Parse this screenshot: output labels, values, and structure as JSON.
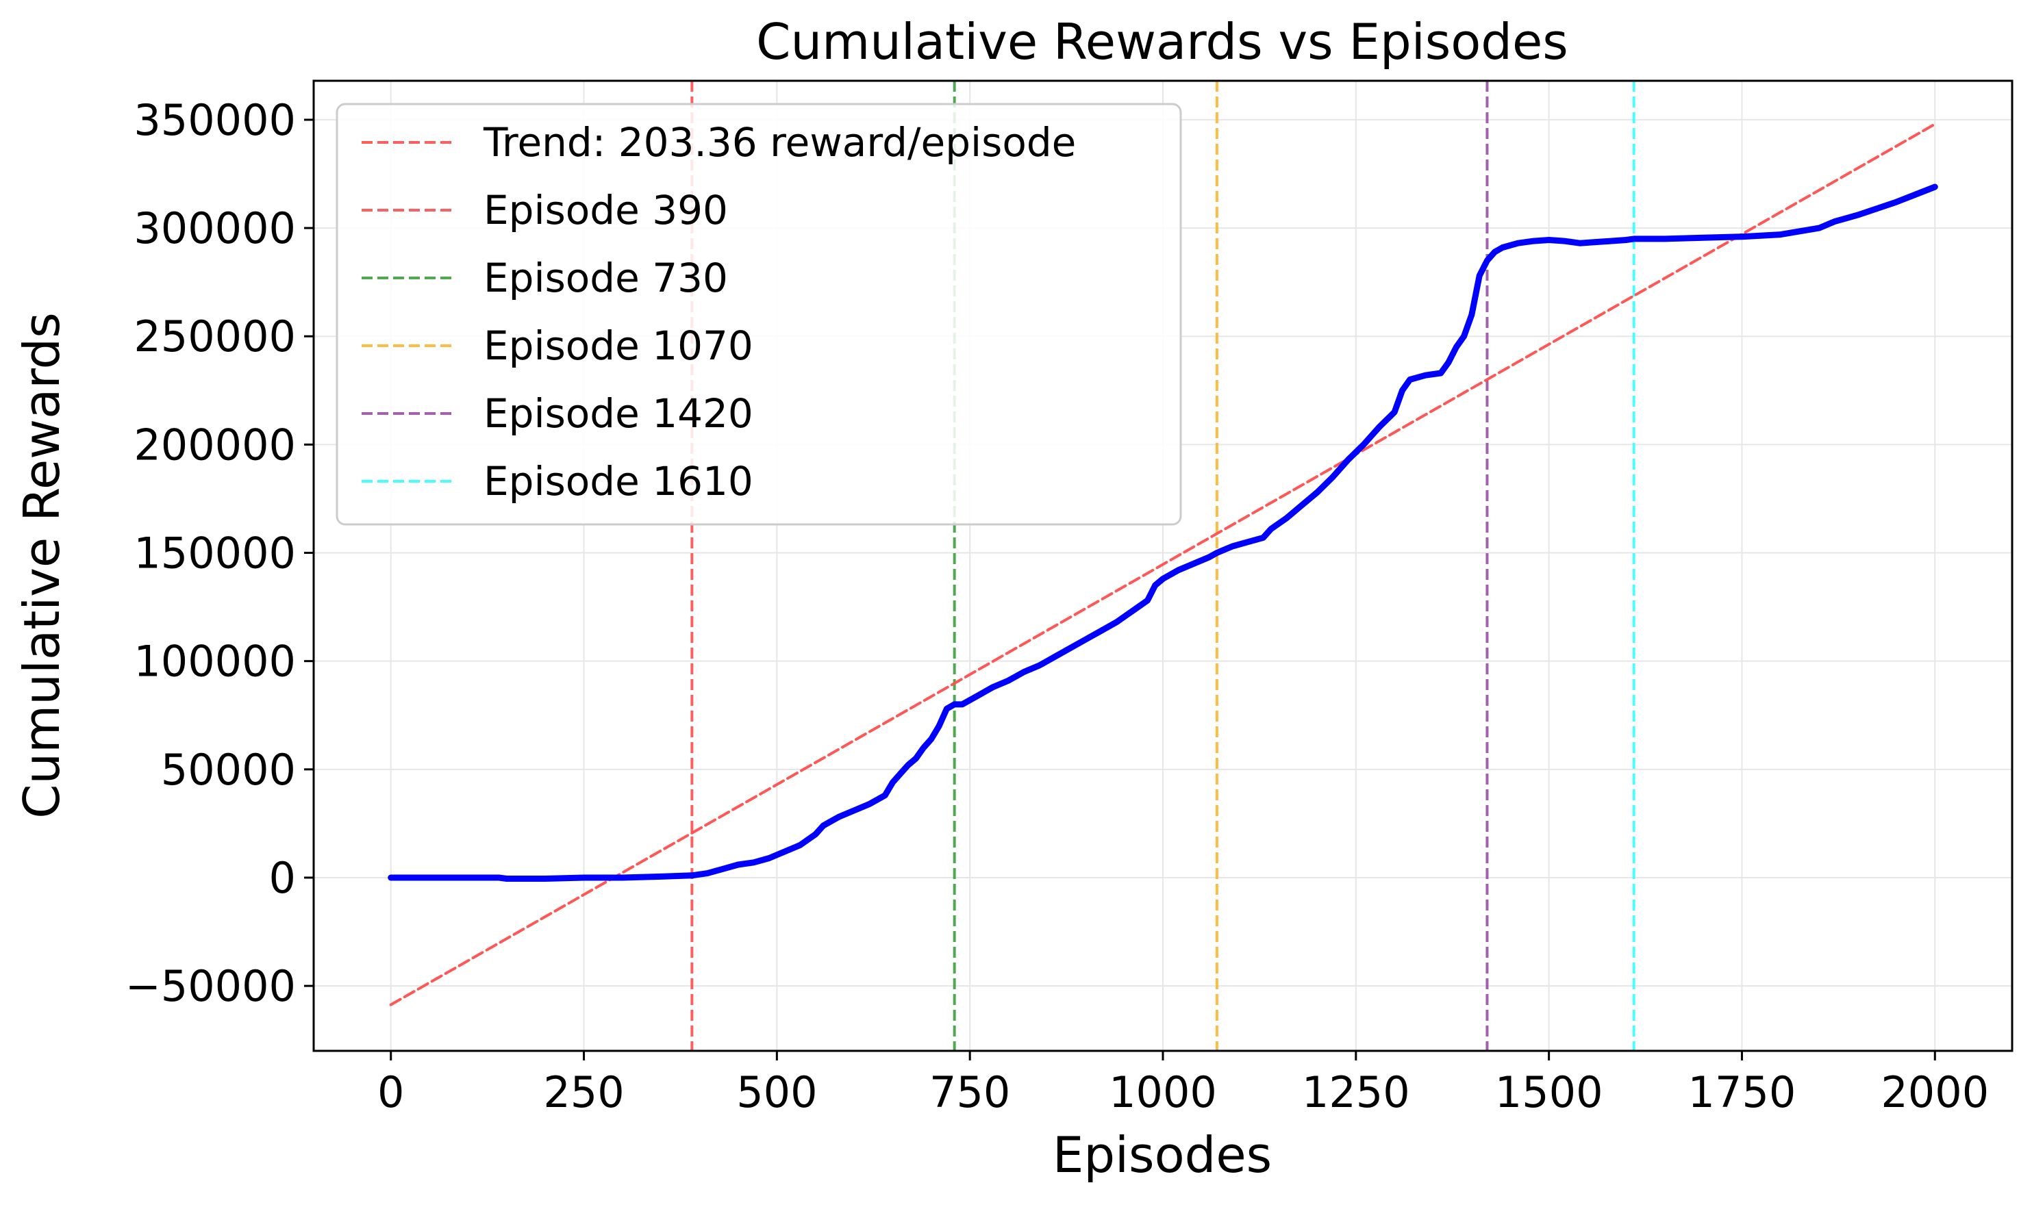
{
  "chart_data": {
    "type": "line",
    "title": "Cumulative Rewards vs Episodes",
    "xlabel": "Episodes",
    "ylabel": "Cumulative Rewards",
    "xlim": [
      -100,
      2100
    ],
    "ylim": [
      -80000,
      368000
    ],
    "x_ticks": [
      0,
      250,
      500,
      750,
      1000,
      1250,
      1500,
      1750,
      2000
    ],
    "x_tick_labels": [
      "0",
      "250",
      "500",
      "750",
      "1000",
      "1250",
      "1500",
      "1750",
      "2000"
    ],
    "y_ticks": [
      -50000,
      0,
      50000,
      100000,
      150000,
      200000,
      250000,
      300000,
      350000
    ],
    "y_tick_labels": [
      "−50000",
      "0",
      "50000",
      "100000",
      "150000",
      "200000",
      "250000",
      "300000",
      "350000"
    ],
    "grid": true,
    "legend_position": "top-left",
    "series": [
      {
        "color": "#0000ff",
        "style": "solid",
        "x": [
          0,
          50,
          100,
          140,
          150,
          200,
          250,
          300,
          350,
          390,
          410,
          430,
          450,
          470,
          490,
          510,
          530,
          550,
          560,
          570,
          580,
          600,
          620,
          640,
          650,
          660,
          670,
          680,
          690,
          700,
          710,
          720,
          730,
          740,
          760,
          780,
          800,
          820,
          840,
          850,
          860,
          880,
          900,
          920,
          940,
          960,
          980,
          990,
          1000,
          1020,
          1040,
          1060,
          1070,
          1090,
          1110,
          1130,
          1140,
          1160,
          1180,
          1200,
          1220,
          1240,
          1260,
          1280,
          1300,
          1310,
          1320,
          1330,
          1340,
          1360,
          1370,
          1380,
          1390,
          1400,
          1410,
          1420,
          1430,
          1440,
          1460,
          1480,
          1500,
          1520,
          1540,
          1560,
          1580,
          1600,
          1610,
          1650,
          1700,
          1750,
          1800,
          1850,
          1870,
          1880,
          1900,
          1950,
          2000
        ],
        "y": [
          0,
          0,
          0,
          0,
          -500,
          -500,
          0,
          0,
          500,
          1000,
          2000,
          4000,
          6000,
          7000,
          9000,
          12000,
          15000,
          20000,
          24000,
          26000,
          28000,
          31000,
          34000,
          38000,
          44000,
          48000,
          52000,
          55000,
          60000,
          64000,
          70000,
          78000,
          80000,
          80000,
          84000,
          88000,
          91000,
          95000,
          98000,
          100000,
          102000,
          106000,
          110000,
          114000,
          118000,
          123000,
          128000,
          135000,
          138000,
          142000,
          145000,
          148000,
          150000,
          153000,
          155000,
          157000,
          161000,
          166000,
          172000,
          178000,
          185000,
          193000,
          200000,
          208000,
          215000,
          225000,
          230000,
          231000,
          232000,
          233000,
          238000,
          245000,
          250000,
          260000,
          278000,
          285000,
          289000,
          291000,
          293000,
          294000,
          294500,
          294000,
          293000,
          293500,
          294000,
          294500,
          295000,
          295000,
          295500,
          296000,
          297000,
          300000,
          303000,
          304000,
          306000,
          312000,
          319000
        ]
      },
      {
        "name": "Trend: 203.36 reward/episode",
        "color": "#ff4d4d",
        "style": "dashed",
        "x": [
          0,
          2000
        ],
        "y": [
          -58700,
          348000
        ]
      }
    ],
    "vertical_lines": [
      {
        "name": "Episode 390",
        "x": 390,
        "color": "#ff4d4d"
      },
      {
        "name": "Episode 730",
        "x": 730,
        "color": "#3ca03c"
      },
      {
        "name": "Episode 1070",
        "x": 1070,
        "color": "#ffb52e"
      },
      {
        "name": "Episode 1420",
        "x": 1420,
        "color": "#9a4ea6"
      },
      {
        "name": "Episode 1610",
        "x": 1610,
        "color": "#33ffff"
      }
    ],
    "legend": [
      {
        "label": "Trend: 203.36 reward/episode",
        "color": "#ff4d4d"
      },
      {
        "label": "Episode 390",
        "color": "#ff4d4d"
      },
      {
        "label": "Episode 730",
        "color": "#3ca03c"
      },
      {
        "label": "Episode 1070",
        "color": "#ffb52e"
      },
      {
        "label": "Episode 1420",
        "color": "#9a4ea6"
      },
      {
        "label": "Episode 1610",
        "color": "#33ffff"
      }
    ]
  }
}
